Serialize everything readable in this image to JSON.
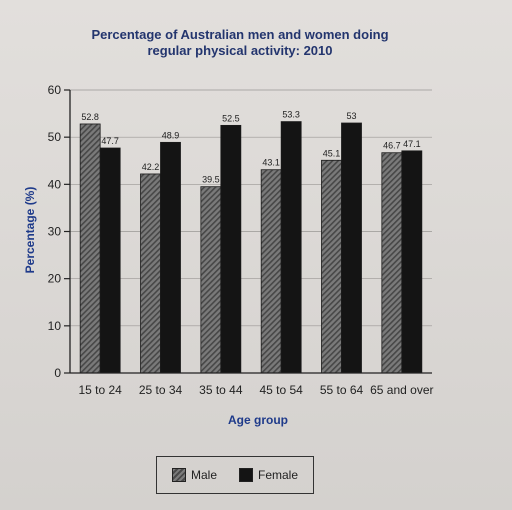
{
  "chart_data": {
    "type": "bar",
    "title_lines": [
      "Percentage of Australian men and women doing",
      "regular physical activity: 2010"
    ],
    "xlabel": "Age group",
    "ylabel": "Percentage (%)",
    "ylim": [
      0,
      60
    ],
    "yticks": [
      "0",
      "10",
      "20",
      "30",
      "40",
      "50",
      "60"
    ],
    "grid": true,
    "legend_position": "bottom",
    "categories": [
      "15 to 24",
      "25 to 34",
      "35 to 44",
      "45 to 54",
      "55 to 64",
      "65 and over"
    ],
    "series": [
      {
        "name": "Male",
        "values": [
          52.8,
          42.2,
          39.5,
          43.1,
          45.1,
          46.7
        ],
        "value_labels": [
          "52.8",
          "42.2",
          "39.5",
          "43.1",
          "45.1",
          "46.7"
        ],
        "color": "#6a6a6a"
      },
      {
        "name": "Female",
        "values": [
          47.7,
          48.9,
          52.5,
          53.3,
          53,
          47.1
        ],
        "value_labels": [
          "47.7",
          "48.9",
          "52.5",
          "53.3",
          "53",
          "47.1"
        ],
        "color": "#141414"
      }
    ]
  },
  "colors": {
    "title": "#23356e",
    "axis_title": "#1e3a8a",
    "male": "#6a6a6a",
    "female": "#141414"
  }
}
